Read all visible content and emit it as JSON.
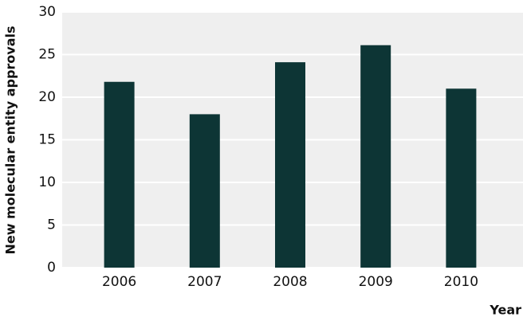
{
  "chart_data": {
    "type": "bar",
    "y_label": "New molecular entity approvals",
    "x_label": "Year",
    "categories": [
      "2006",
      "2007",
      "2008",
      "2009",
      "2010"
    ],
    "values": [
      21.8,
      18,
      24.1,
      26.1,
      21
    ],
    "color": "#0d3535",
    "ylim": [
      0,
      30
    ],
    "yticks": [
      0,
      5,
      10,
      15,
      20,
      25,
      30
    ],
    "grid": true
  }
}
